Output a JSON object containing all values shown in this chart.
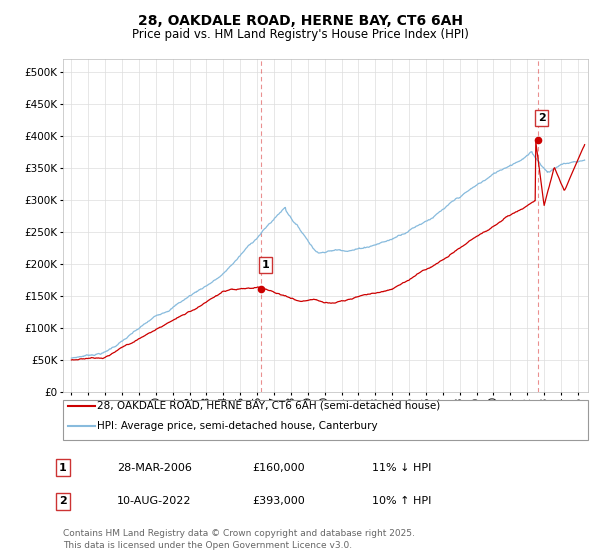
{
  "title": "28, OAKDALE ROAD, HERNE BAY, CT6 6AH",
  "subtitle": "Price paid vs. HM Land Registry's House Price Index (HPI)",
  "yticks": [
    0,
    50000,
    100000,
    150000,
    200000,
    250000,
    300000,
    350000,
    400000,
    450000,
    500000
  ],
  "ylim": [
    0,
    520000
  ],
  "xlim_start": 1994.5,
  "xlim_end": 2025.6,
  "sale1_x": 2006.24,
  "sale1_y": 160000,
  "sale1_label": "1",
  "sale2_x": 2022.61,
  "sale2_y": 393000,
  "sale2_label": "2",
  "line_color_property": "#cc0000",
  "line_color_hpi": "#88bbdd",
  "vline_color": "#dd4444",
  "grid_color": "#dddddd",
  "background_color": "#ffffff",
  "legend_label_property": "28, OAKDALE ROAD, HERNE BAY, CT6 6AH (semi-detached house)",
  "legend_label_hpi": "HPI: Average price, semi-detached house, Canterbury",
  "annotation1_date": "28-MAR-2006",
  "annotation1_price": "£160,000",
  "annotation1_hpi": "11% ↓ HPI",
  "annotation2_date": "10-AUG-2022",
  "annotation2_price": "£393,000",
  "annotation2_hpi": "10% ↑ HPI",
  "footer": "Contains HM Land Registry data © Crown copyright and database right 2025.\nThis data is licensed under the Open Government Licence v3.0.",
  "title_fontsize": 10,
  "subtitle_fontsize": 8.5,
  "tick_fontsize": 7.5,
  "legend_fontsize": 7.5,
  "annotation_fontsize": 8
}
